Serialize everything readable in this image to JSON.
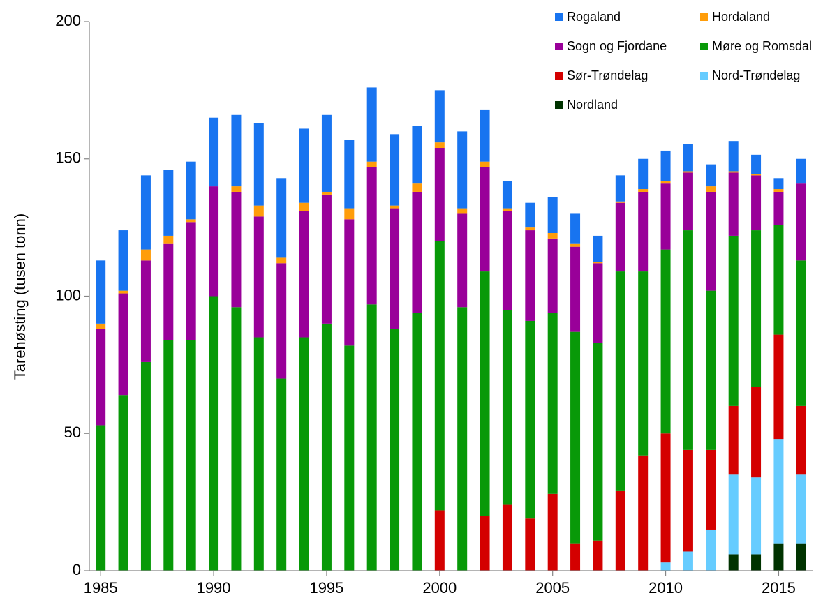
{
  "chart_data": {
    "type": "stacked-bar",
    "y_label": "Tarehøsting  (tusen tonn)",
    "x": [
      1985,
      1986,
      1987,
      1988,
      1989,
      1990,
      1991,
      1992,
      1993,
      1994,
      1995,
      1996,
      1997,
      1998,
      1999,
      2000,
      2001,
      2002,
      2003,
      2004,
      2005,
      2006,
      2007,
      2008,
      2009,
      2010,
      2011,
      2012,
      2013,
      2014,
      2015,
      2016
    ],
    "xlim": [
      1984.5,
      2016.5
    ],
    "xticks": [
      1985,
      1990,
      1995,
      2000,
      2005,
      2010,
      2015
    ],
    "ylim": [
      0,
      200
    ],
    "yticks": [
      0,
      50,
      100,
      150,
      200
    ],
    "series": [
      {
        "name": "Rogaland",
        "color": "#1874f0",
        "values": [
          23,
          22,
          27,
          24,
          21,
          25,
          26,
          30,
          29,
          27,
          28,
          25,
          27,
          26,
          21,
          19,
          28,
          19,
          10,
          9,
          13,
          11,
          9.5,
          9.5,
          11,
          11,
          10,
          8,
          11,
          7,
          4,
          9
        ]
      },
      {
        "name": "Hordaland",
        "color": "#ff9d0a",
        "values": [
          2,
          1,
          4,
          3,
          1,
          0,
          2,
          4,
          2,
          3,
          1,
          4,
          2,
          1,
          3,
          2,
          2,
          2,
          1,
          1,
          2,
          1,
          0.5,
          0.5,
          1,
          1,
          0.5,
          2,
          0.5,
          0.5,
          1,
          0
        ]
      },
      {
        "name": "Sogn og Fjordane",
        "color": "#990099",
        "values": [
          35,
          37,
          37,
          35,
          43,
          40,
          42,
          44,
          42,
          46,
          47,
          46,
          50,
          44,
          44,
          34,
          34,
          38,
          36,
          33,
          27,
          31,
          29,
          25,
          29,
          24,
          21,
          36,
          23,
          20,
          12,
          28
        ]
      },
      {
        "name": "Møre og Romsdal",
        "color": "#089908",
        "values": [
          53,
          64,
          76,
          84,
          84,
          100,
          96,
          85,
          70,
          85,
          90,
          82,
          97,
          88,
          94,
          98,
          96,
          89,
          71,
          72,
          66,
          77,
          72,
          80,
          67,
          67,
          80,
          58,
          62,
          57,
          40,
          53
        ]
      },
      {
        "name": "Sør-Trøndelag",
        "color": "#d40000",
        "values": [
          0,
          0,
          0,
          0,
          0,
          0,
          0,
          0,
          0,
          0,
          0,
          0,
          0,
          0,
          0,
          22,
          0,
          20,
          24,
          19,
          28,
          10,
          11,
          29,
          42,
          47,
          37,
          29,
          25,
          33,
          38,
          25
        ]
      },
      {
        "name": "Nord-Trøndelag",
        "color": "#66ccff",
        "values": [
          0,
          0,
          0,
          0,
          0,
          0,
          0,
          0,
          0,
          0,
          0,
          0,
          0,
          0,
          0,
          0,
          0,
          0,
          0,
          0,
          0,
          0,
          0,
          0,
          0,
          3,
          7,
          15,
          29,
          28,
          38,
          25
        ]
      },
      {
        "name": "Nordland",
        "color": "#003300",
        "values": [
          0,
          0,
          0,
          0,
          0,
          0,
          0,
          0,
          0,
          0,
          0,
          0,
          0,
          0,
          0,
          0,
          0,
          0,
          0,
          0,
          0,
          0,
          0,
          0,
          0,
          0,
          0,
          0,
          6,
          6,
          10,
          10
        ]
      }
    ]
  }
}
